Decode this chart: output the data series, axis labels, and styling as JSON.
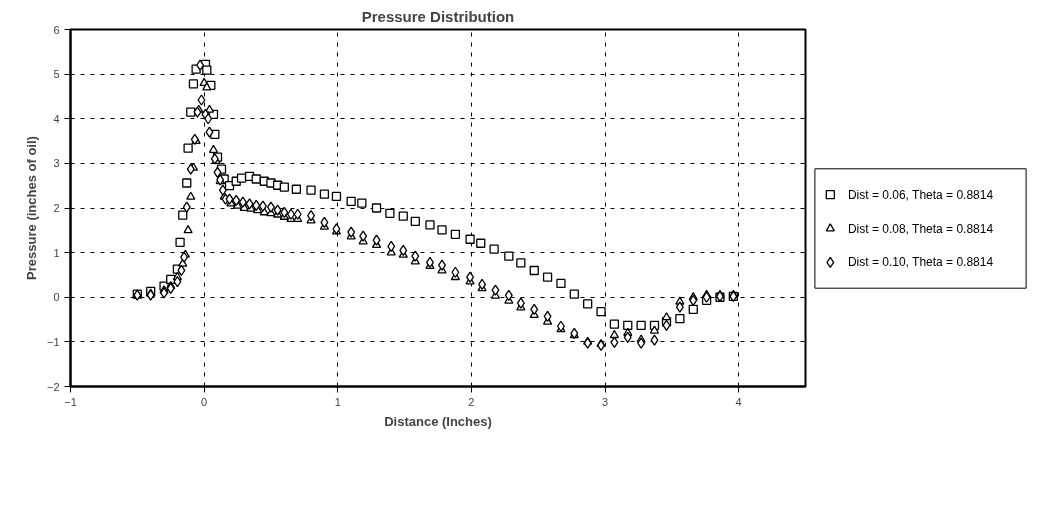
{
  "chart_data": {
    "type": "scatter",
    "title": "Pressure Distribution",
    "xlabel": "Distance (Inches)",
    "ylabel": "Pressure (inches of oil)",
    "xlim": [
      -1,
      4.5
    ],
    "xticks": [
      -1,
      0,
      1,
      2,
      3,
      4
    ],
    "ylim": [
      -2,
      6
    ],
    "yticks": [
      -2,
      -1,
      0,
      1,
      2,
      3,
      4,
      5,
      6
    ],
    "grid": true,
    "legend": "right",
    "series": [
      {
        "name": "Dist = 0.06, Theta = 0.8814",
        "color": "#000000",
        "marker": "square",
        "x": [
          -0.5,
          -0.4,
          -0.3,
          -0.25,
          -0.2,
          -0.18,
          -0.16,
          -0.13,
          -0.12,
          -0.1,
          -0.08,
          -0.06,
          0.01,
          0.02,
          0.05,
          0.07,
          0.08,
          0.1,
          0.13,
          0.15,
          0.19,
          0.24,
          0.28,
          0.34,
          0.39,
          0.45,
          0.5,
          0.55,
          0.6,
          0.69,
          0.8,
          0.9,
          0.99,
          1.1,
          1.18,
          1.29,
          1.39,
          1.49,
          1.58,
          1.69,
          1.78,
          1.88,
          1.99,
          2.07,
          2.17,
          2.28,
          2.37,
          2.47,
          2.57,
          2.67,
          2.77,
          2.87,
          2.97,
          3.07,
          3.17,
          3.27,
          3.37,
          3.46,
          3.56,
          3.66,
          3.76,
          3.86,
          3.96
        ],
        "values": [
          0.07,
          0.13,
          0.25,
          0.4,
          0.63,
          1.23,
          1.84,
          2.56,
          3.34,
          4.15,
          4.78,
          5.11,
          5.22,
          5.09,
          4.75,
          4.1,
          3.65,
          3.14,
          2.87,
          2.65,
          2.5,
          2.6,
          2.67,
          2.71,
          2.65,
          2.6,
          2.56,
          2.51,
          2.47,
          2.42,
          2.4,
          2.31,
          2.26,
          2.15,
          2.11,
          2.0,
          1.88,
          1.82,
          1.7,
          1.62,
          1.51,
          1.41,
          1.3,
          1.21,
          1.08,
          0.92,
          0.77,
          0.6,
          0.45,
          0.31,
          0.07,
          -0.15,
          -0.32,
          -0.6,
          -0.63,
          -0.63,
          -0.63,
          -0.55,
          -0.48,
          -0.27,
          -0.07,
          0.0,
          0.02
        ]
      },
      {
        "name": "Dist = 0.08, Theta = 0.8814",
        "color": "#000000",
        "marker": "triangle",
        "x": [
          -0.5,
          -0.4,
          -0.3,
          -0.25,
          -0.2,
          -0.16,
          -0.14,
          -0.12,
          -0.1,
          -0.08,
          -0.06,
          -0.04,
          0.0,
          0.02,
          0.04,
          0.07,
          0.09,
          0.12,
          0.15,
          0.2,
          0.25,
          0.3,
          0.35,
          0.4,
          0.45,
          0.5,
          0.55,
          0.6,
          0.65,
          0.7,
          0.8,
          0.9,
          0.99,
          1.1,
          1.19,
          1.29,
          1.4,
          1.49,
          1.58,
          1.69,
          1.78,
          1.88,
          1.99,
          2.08,
          2.18,
          2.28,
          2.37,
          2.47,
          2.57,
          2.67,
          2.77,
          2.87,
          2.97,
          3.07,
          3.17,
          3.27,
          3.37,
          3.46,
          3.56,
          3.66,
          3.76,
          3.86,
          3.96
        ],
        "values": [
          0.05,
          0.08,
          0.15,
          0.25,
          0.45,
          0.75,
          0.95,
          1.5,
          2.25,
          2.9,
          3.5,
          4.2,
          4.8,
          4.7,
          4.2,
          3.3,
          3.05,
          2.6,
          2.25,
          2.1,
          2.05,
          2.0,
          1.98,
          1.95,
          1.9,
          1.88,
          1.85,
          1.8,
          1.75,
          1.75,
          1.72,
          1.58,
          1.47,
          1.36,
          1.25,
          1.17,
          1.0,
          0.95,
          0.8,
          0.7,
          0.6,
          0.45,
          0.35,
          0.2,
          0.03,
          -0.08,
          -0.23,
          -0.4,
          -0.55,
          -0.72,
          -0.85,
          -1.0,
          -1.05,
          -0.85,
          -0.8,
          -0.95,
          -0.75,
          -0.45,
          -0.1,
          0.0,
          0.05,
          0.05,
          0.05
        ]
      },
      {
        "name": "Dist = 0.10, Theta = 0.8814",
        "color": "#000000",
        "marker": "diamond",
        "x": [
          -0.5,
          -0.4,
          -0.3,
          -0.25,
          -0.2,
          -0.17,
          -0.15,
          -0.13,
          -0.1,
          -0.07,
          -0.05,
          -0.03,
          -0.02,
          0.01,
          0.03,
          0.04,
          0.08,
          0.1,
          0.12,
          0.14,
          0.16,
          0.19,
          0.24,
          0.29,
          0.34,
          0.39,
          0.44,
          0.5,
          0.55,
          0.6,
          0.65,
          0.7,
          0.8,
          0.9,
          0.99,
          1.1,
          1.19,
          1.29,
          1.4,
          1.49,
          1.58,
          1.69,
          1.78,
          1.88,
          1.99,
          2.08,
          2.18,
          2.28,
          2.37,
          2.47,
          2.57,
          2.67,
          2.77,
          2.87,
          2.97,
          3.07,
          3.17,
          3.27,
          3.37,
          3.46,
          3.56,
          3.66,
          3.76,
          3.86,
          3.96
        ],
        "values": [
          0.05,
          0.05,
          0.1,
          0.2,
          0.35,
          0.6,
          0.9,
          2.02,
          2.87,
          3.54,
          4.15,
          5.2,
          4.42,
          4.1,
          4.0,
          3.7,
          3.1,
          2.8,
          2.63,
          2.4,
          2.2,
          2.2,
          2.17,
          2.13,
          2.09,
          2.06,
          2.04,
          2.02,
          1.95,
          1.9,
          1.86,
          1.86,
          1.83,
          1.68,
          1.53,
          1.46,
          1.37,
          1.28,
          1.14,
          1.05,
          0.92,
          0.78,
          0.72,
          0.56,
          0.45,
          0.29,
          0.16,
          0.04,
          -0.13,
          -0.27,
          -0.43,
          -0.65,
          -0.81,
          -1.03,
          -1.08,
          -1.01,
          -0.9,
          -1.03,
          -0.96,
          -0.63,
          -0.22,
          -0.07,
          0.0,
          0.02,
          0.02
        ]
      }
    ]
  }
}
